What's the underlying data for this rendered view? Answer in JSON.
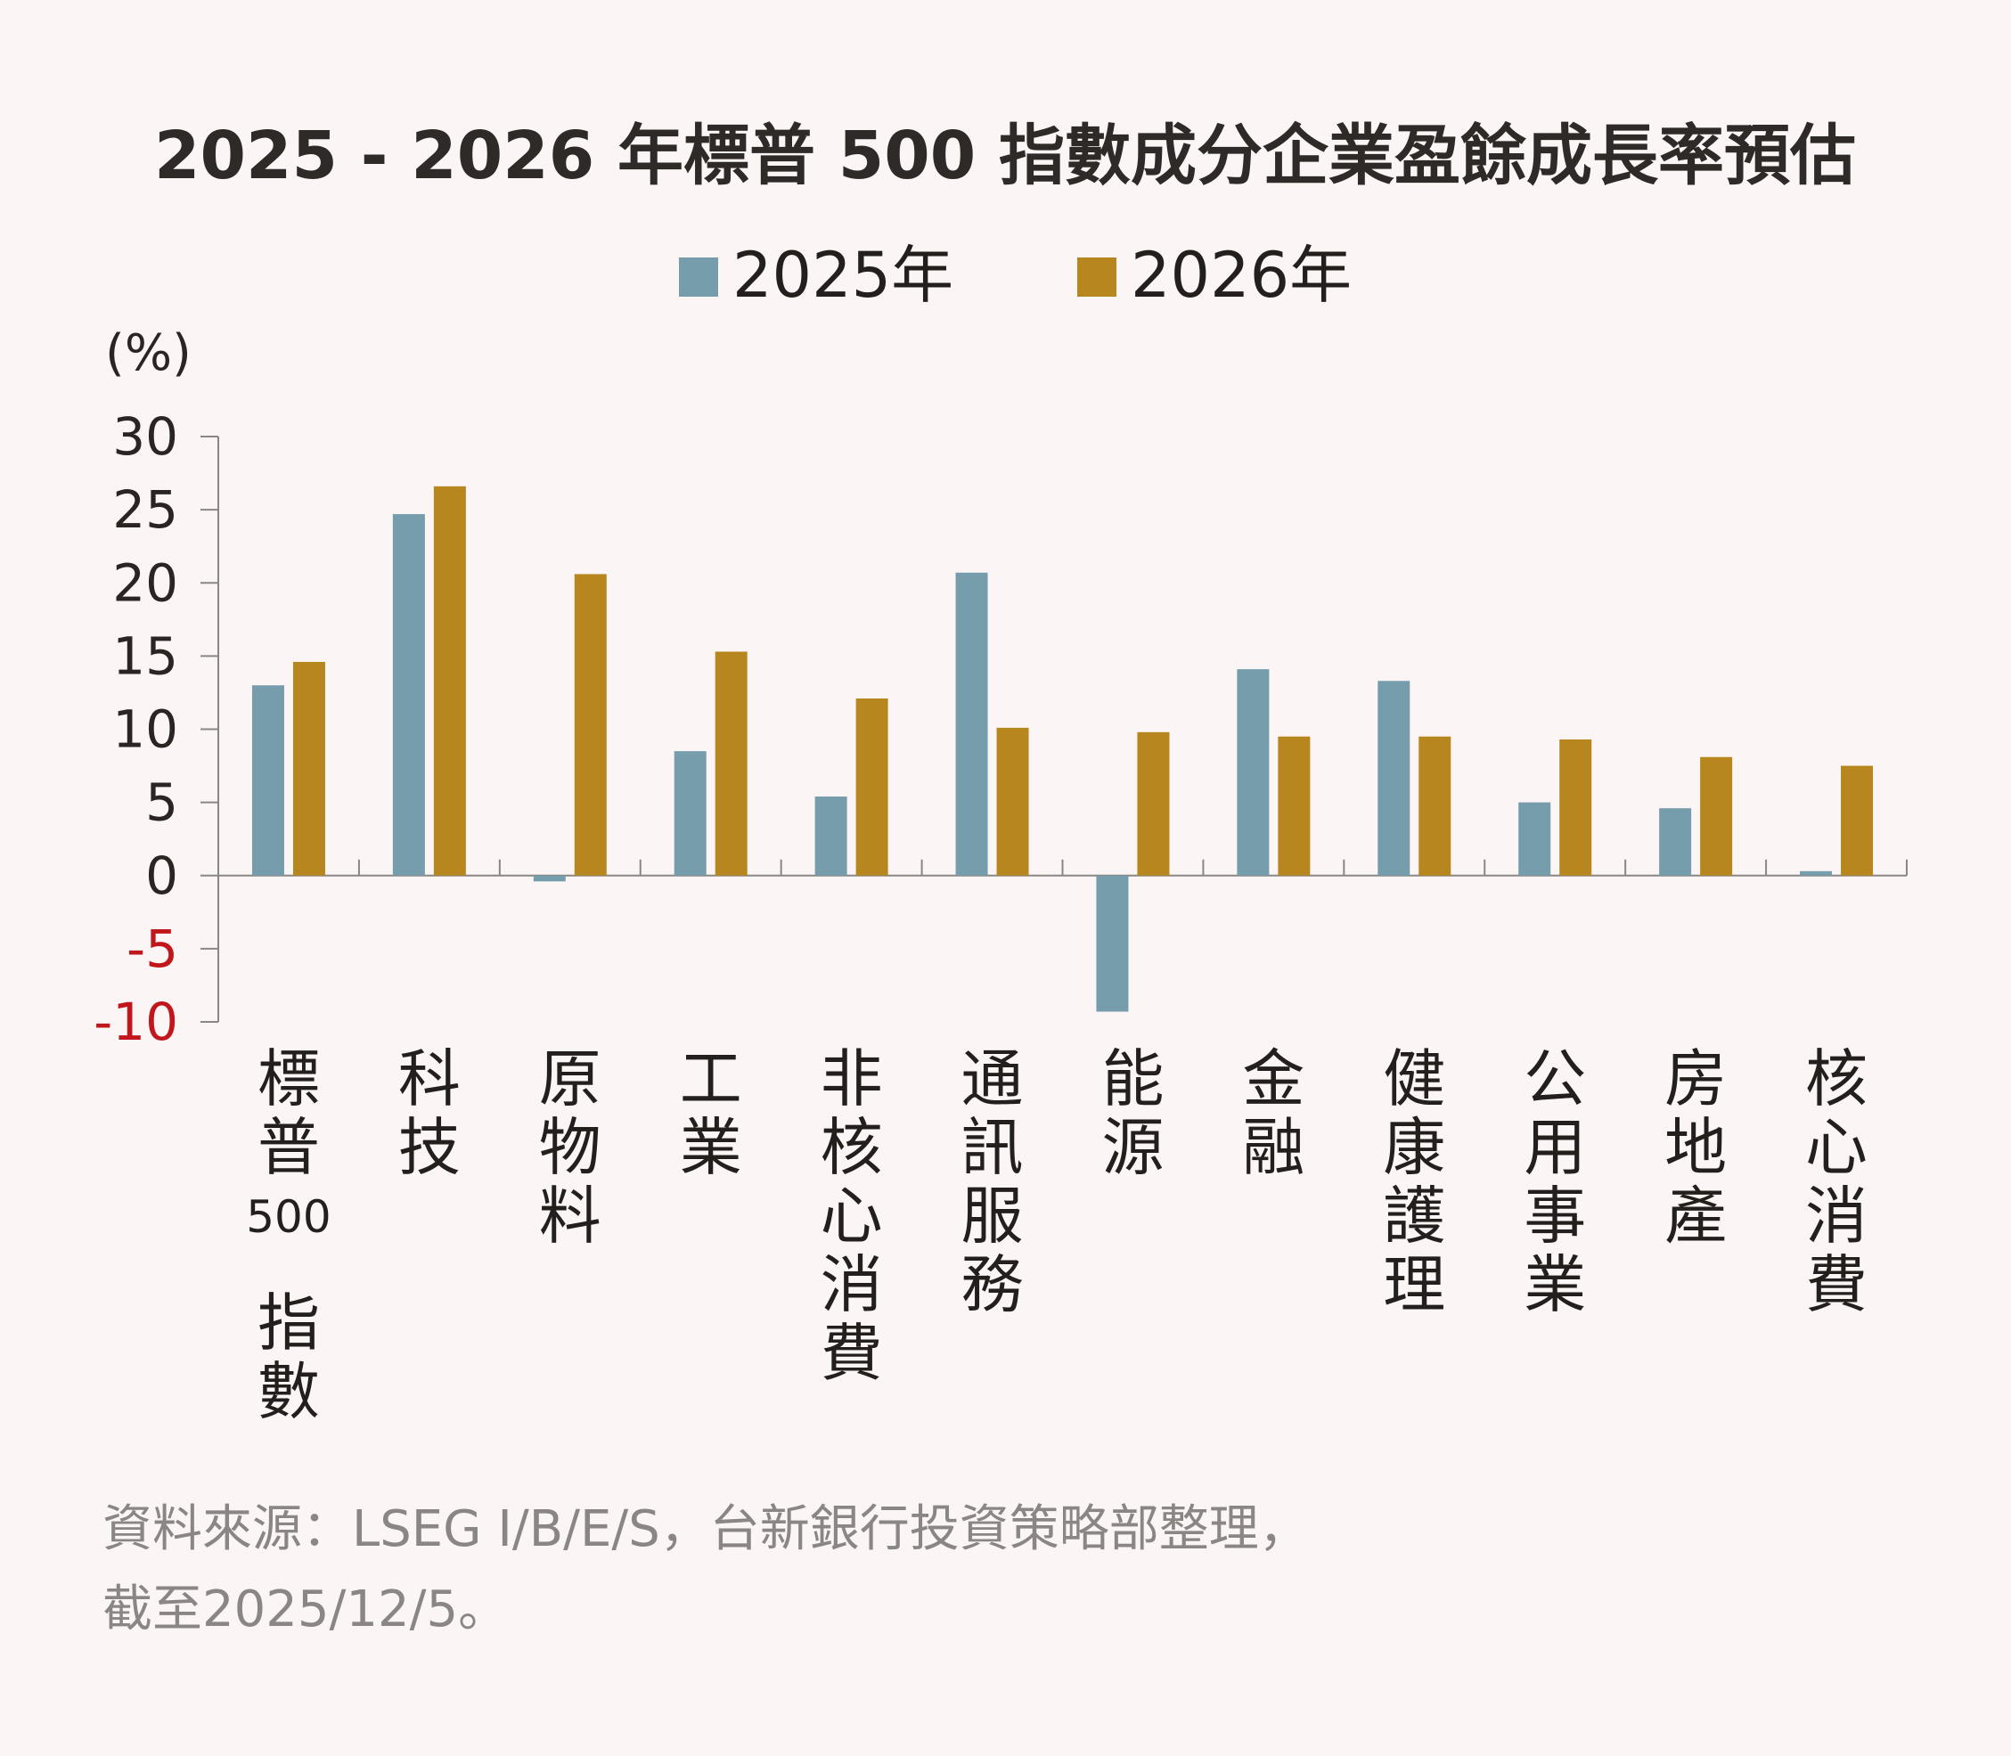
{
  "chart_data": {
    "type": "bar",
    "title": "2025 - 2026 年標普 500 指數成分企業盈餘成長率預估",
    "ylabel": "(%)",
    "xlabel": "",
    "ylim": [
      -10,
      30
    ],
    "yticks": [
      30,
      25,
      20,
      15,
      10,
      5,
      0,
      -5,
      -10
    ],
    "grid": false,
    "legend_position": "top-center",
    "categories": [
      "標普500指數",
      "科技",
      "原物料",
      "工業",
      "非核心消費",
      "通訊服務",
      "能源",
      "金融",
      "健康護理",
      "公用事業",
      "房地產",
      "核心消費"
    ],
    "series": [
      {
        "name": "2025年",
        "color": "#769dac",
        "values": [
          13.0,
          24.7,
          -0.4,
          8.5,
          5.4,
          20.7,
          -9.3,
          14.1,
          13.3,
          5.0,
          4.6,
          0.3
        ]
      },
      {
        "name": "2026年",
        "color": "#b8861e",
        "values": [
          14.6,
          26.6,
          20.6,
          15.3,
          12.1,
          10.1,
          9.8,
          9.5,
          9.5,
          9.3,
          8.1,
          7.5
        ]
      }
    ],
    "negative_tick_color": "#c0161c"
  },
  "source": {
    "line1": "資料來源：LSEG I/B/E/S，台新銀行投資策略部整理，",
    "line2": "截至2025/12/5。"
  }
}
